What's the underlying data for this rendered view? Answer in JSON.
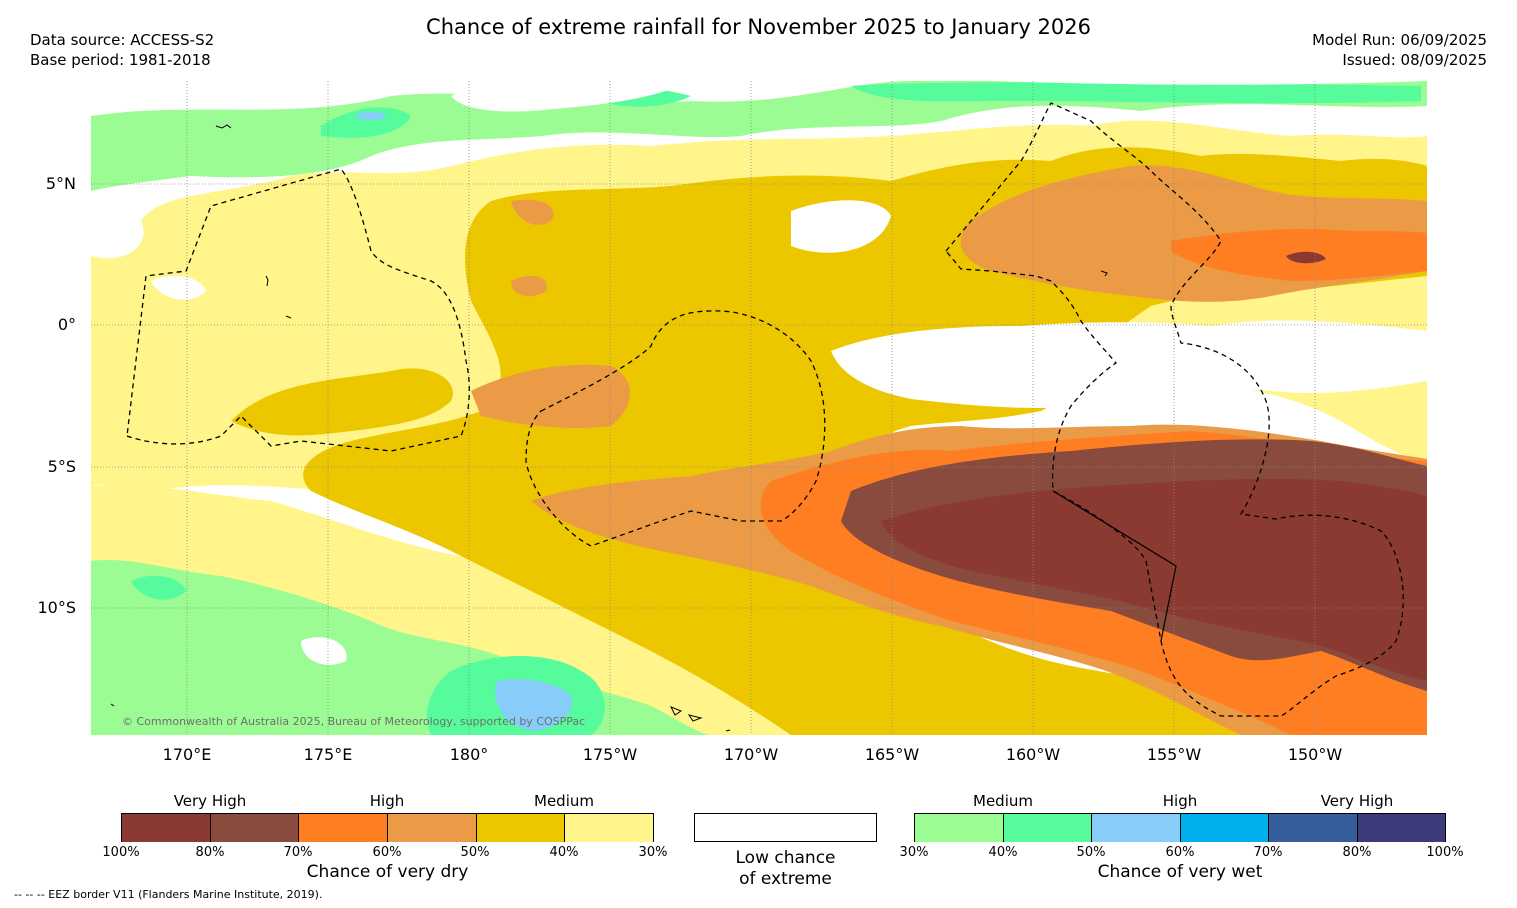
{
  "title": "Chance of extreme rainfall for November 2025 to January 2026",
  "meta_left": {
    "line1": "Data source: ACCESS-S2",
    "line2": "Base period: 1981-2018"
  },
  "meta_right": {
    "line1": "Model Run: 06/09/2025",
    "line2": "Issued: 08/09/2025"
  },
  "lat_labels": [
    "5°N",
    "0°",
    "5°S",
    "10°S"
  ],
  "lon_labels": [
    "170°E",
    "175°E",
    "180°",
    "175°W",
    "170°W",
    "165°W",
    "160°W",
    "155°W",
    "150°W"
  ],
  "copyright": "© Commonwealth of Australia 2025, Bureau of Meteorology, supported by COSPPac",
  "legend": {
    "dry": {
      "headers": [
        "Very High",
        "High",
        "Medium"
      ],
      "ticks": [
        "100%",
        "80%",
        "70%",
        "60%",
        "50%",
        "40%",
        "30%"
      ],
      "colors": [
        "#8b3a31",
        "#894b3e",
        "#ff7e22",
        "#eb9a46",
        "#ecc700",
        "#fff58b"
      ],
      "title": "Chance of very dry"
    },
    "neutral": {
      "line1": "Low chance",
      "line2": "of extreme",
      "color": "#ffffff"
    },
    "wet": {
      "headers": [
        "Medium",
        "High",
        "Very High"
      ],
      "ticks": [
        "30%",
        "40%",
        "50%",
        "60%",
        "70%",
        "80%",
        "100%"
      ],
      "colors": [
        "#9cfc94",
        "#56fc9c",
        "#88cdf9",
        "#00b0ec",
        "#375e9c",
        "#3d3b7a"
      ],
      "title": "Chance of very wet"
    }
  },
  "footnote": "-- -- -- EEZ border V11 (Flanders Marine Institute, 2019)."
}
